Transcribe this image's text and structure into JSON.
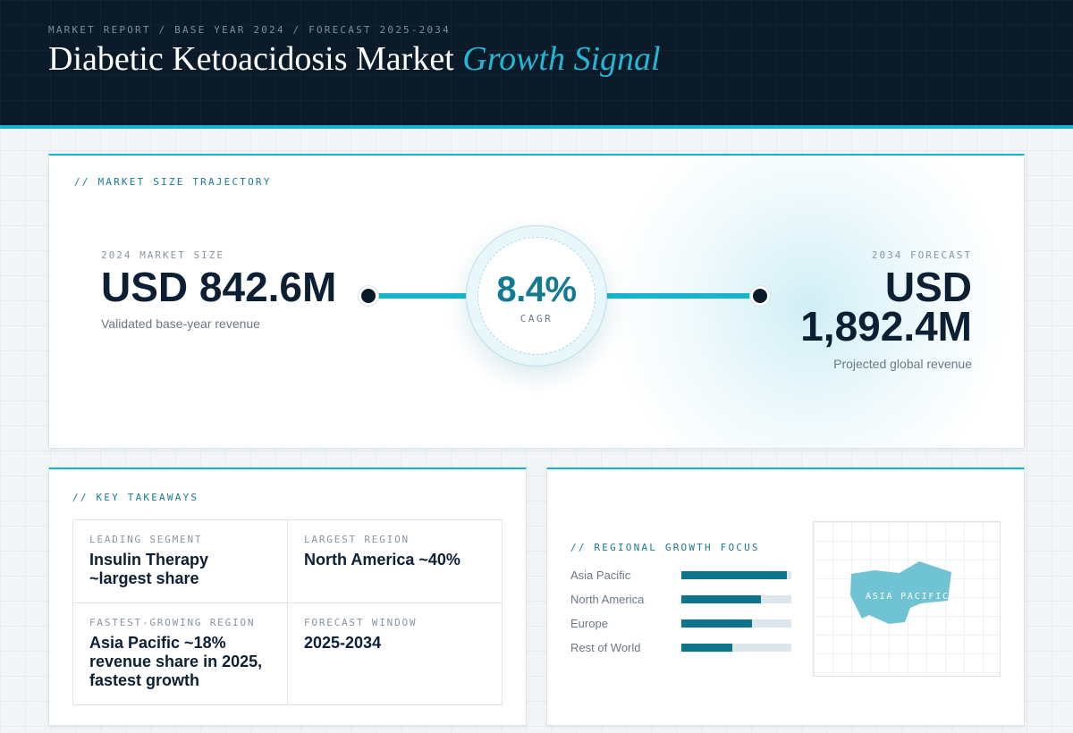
{
  "header": {
    "breadcrumb": "MARKET REPORT / BASE YEAR 2024 / FORECAST 2025-2034",
    "title_main": "Diabetic Ketoacidosis Market",
    "title_accent": "Growth Signal"
  },
  "trajectory": {
    "label": "// MARKET SIZE TRAJECTORY",
    "base": {
      "label": "2024 MARKET SIZE",
      "value": "USD 842.6M",
      "caption": "Validated base-year revenue"
    },
    "cagr": {
      "value": "8.4%",
      "label": "CAGR"
    },
    "forecast": {
      "label": "2034 FORECAST",
      "value_line1": "USD",
      "value_line2": "1,892.4M",
      "caption": "Projected global revenue"
    }
  },
  "takeaways": {
    "label": "// KEY TAKEAWAYS",
    "items": [
      {
        "key": "LEADING SEGMENT",
        "value": "Insulin Therapy ~largest share"
      },
      {
        "key": "LARGEST REGION",
        "value": "North America ~40%"
      },
      {
        "key": "FASTEST-GROWING REGION",
        "value": "Asia Pacific ~18% revenue share in 2025, fastest growth"
      },
      {
        "key": "FORECAST WINDOW",
        "value": "2025-2034"
      }
    ]
  },
  "regional": {
    "label": "// REGIONAL GROWTH FOCUS",
    "bars": [
      {
        "name": "Asia Pacific",
        "level": 0.96
      },
      {
        "name": "North America",
        "level": 0.72
      },
      {
        "name": "Europe",
        "level": 0.64
      },
      {
        "name": "Rest of World",
        "level": 0.46
      }
    ],
    "map_label": "ASIA PACIFIC"
  },
  "colors": {
    "header_bg": "#0a1a28",
    "accent": "#18b4cf",
    "accent_dark": "#0e7489",
    "text_dark": "#0d1f33",
    "map_fill": "#6fc3d2"
  }
}
